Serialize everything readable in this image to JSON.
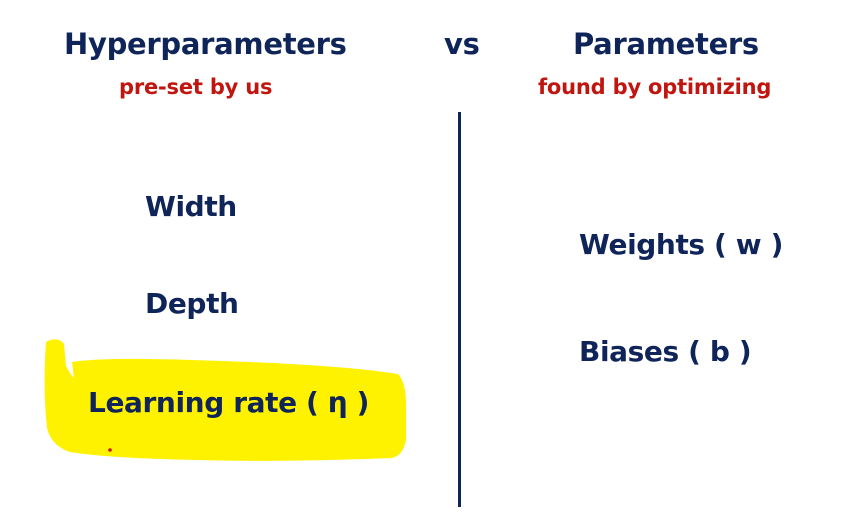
{
  "header": {
    "left_title": "Hyperparameters",
    "vs": "vs",
    "right_title": "Parameters",
    "left_subtitle": "pre-set by us",
    "right_subtitle": "found by optimizing"
  },
  "hyperparameters": {
    "items": [
      "Width",
      "Depth",
      "Learning rate ( η )"
    ]
  },
  "parameters": {
    "items": [
      "Weights ( w )",
      "Biases ( b )"
    ]
  },
  "colors": {
    "heading": "#0f2458",
    "subtitle": "#c0160f",
    "highlight": "#fff200",
    "divider": "#0f2458"
  }
}
